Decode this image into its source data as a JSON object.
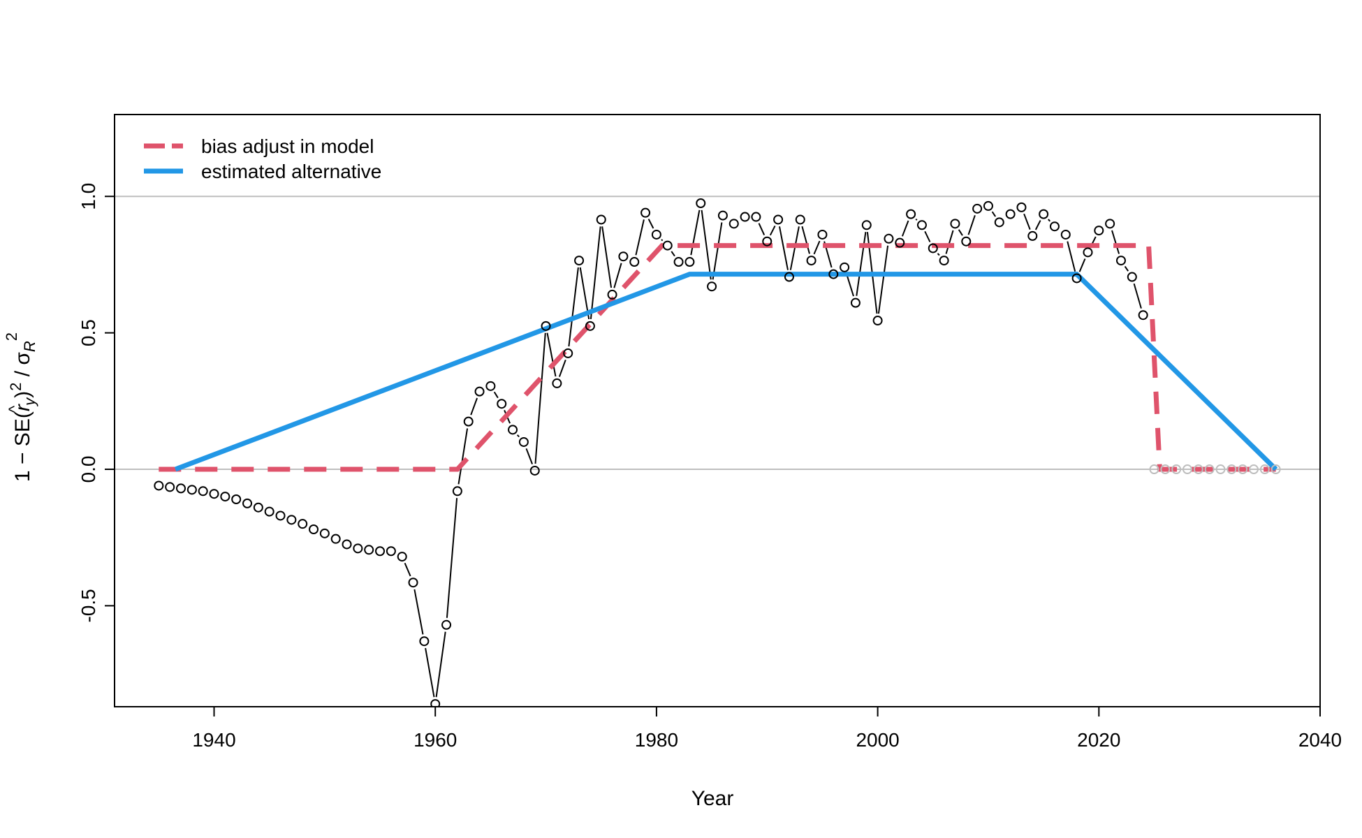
{
  "chart_data": {
    "type": "line",
    "title": "",
    "xlabel": "Year",
    "ylabel": {
      "prefix": "1 − SE(",
      "r": "r",
      "hat": "^",
      "sub_y": "y",
      "after": ")",
      "sup2a": "2",
      "slash": " / σ",
      "sub_R": "R",
      "sup2b": "2"
    },
    "xlim": [
      1931,
      2040
    ],
    "ylim": [
      -0.87,
      1.3
    ],
    "xticks": [
      1940,
      1960,
      1980,
      2000,
      2020,
      2040
    ],
    "yticks": [
      -0.5,
      0.0,
      0.5,
      1.0
    ],
    "ytick_labels": [
      "-0.5",
      "0.0",
      "0.5",
      "1.0"
    ],
    "hlines": [
      0,
      1
    ],
    "grid": false,
    "legend": {
      "position": "top-left",
      "entries": [
        {
          "label": "bias adjust in model",
          "color": "#DF536B",
          "style": "dashed"
        },
        {
          "label": "estimated alternative",
          "color": "#2297E6",
          "style": "solid"
        }
      ]
    },
    "series": [
      {
        "name": "points",
        "color": "#000000",
        "x": [
          1935,
          1936,
          1937,
          1938,
          1939,
          1940,
          1941,
          1942,
          1943,
          1944,
          1945,
          1946,
          1947,
          1948,
          1949,
          1950,
          1951,
          1952,
          1953,
          1954,
          1955,
          1956,
          1957,
          1958,
          1959,
          1960,
          1961,
          1962,
          1963,
          1964,
          1965,
          1966,
          1967,
          1968,
          1969,
          1970,
          1971,
          1972,
          1973,
          1974,
          1975,
          1976,
          1977,
          1978,
          1979,
          1980,
          1981,
          1982,
          1983,
          1984,
          1985,
          1986,
          1987,
          1988,
          1989,
          1990,
          1991,
          1992,
          1993,
          1994,
          1995,
          1996,
          1997,
          1998,
          1999,
          2000,
          2001,
          2002,
          2003,
          2004,
          2005,
          2006,
          2007,
          2008,
          2009,
          2010,
          2011,
          2012,
          2013,
          2014,
          2015,
          2016,
          2017,
          2018,
          2019,
          2020,
          2021,
          2022,
          2023,
          2024
        ],
        "y": [
          -0.06,
          -0.065,
          -0.07,
          -0.075,
          -0.08,
          -0.09,
          -0.1,
          -0.11,
          -0.125,
          -0.14,
          -0.155,
          -0.17,
          -0.185,
          -0.2,
          -0.22,
          -0.235,
          -0.255,
          -0.275,
          -0.29,
          -0.295,
          -0.3,
          -0.3,
          -0.32,
          -0.415,
          -0.63,
          -0.86,
          -0.57,
          -0.08,
          0.175,
          0.285,
          0.305,
          0.24,
          0.145,
          0.1,
          -0.005,
          0.525,
          0.315,
          0.425,
          0.765,
          0.525,
          0.915,
          0.64,
          0.78,
          0.76,
          0.94,
          0.86,
          0.82,
          0.76,
          0.76,
          0.975,
          0.67,
          0.93,
          0.9,
          0.925,
          0.925,
          0.835,
          0.915,
          0.705,
          0.915,
          0.765,
          0.86,
          0.715,
          0.74,
          0.61,
          0.895,
          0.545,
          0.845,
          0.83,
          0.935,
          0.895,
          0.81,
          0.765,
          0.9,
          0.835,
          0.955,
          0.965,
          0.905,
          0.935,
          0.96,
          0.855,
          0.935,
          0.89,
          0.86,
          0.7,
          0.795,
          0.875,
          0.9,
          0.765,
          0.705,
          0.565
        ]
      },
      {
        "name": "forecast points",
        "color": "#BEBEBE",
        "x": [
          2025,
          2026,
          2027,
          2028,
          2029,
          2030,
          2031,
          2032,
          2033,
          2034,
          2035,
          2036
        ],
        "y": [
          0,
          0,
          0,
          0,
          0,
          0,
          0,
          0,
          0,
          0,
          0,
          0
        ]
      },
      {
        "name": "bias adjust in model",
        "color": "#DF536B",
        "x": [
          1935,
          1962,
          1980.5,
          2024.5,
          2025.5,
          2036
        ],
        "y": [
          0,
          0,
          0.82,
          0.82,
          0,
          0
        ]
      },
      {
        "name": "estimated alternative",
        "color": "#2297E6",
        "x": [
          1936.5,
          1983,
          2018,
          2036
        ],
        "y": [
          0,
          0.715,
          0.715,
          0
        ]
      }
    ]
  }
}
